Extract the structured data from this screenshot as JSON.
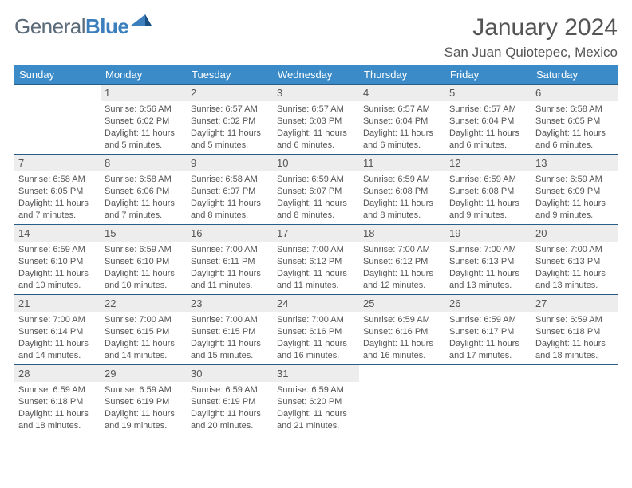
{
  "brand": {
    "part1": "General",
    "part2": "Blue"
  },
  "header": {
    "month": "January 2024",
    "location": "San Juan Quiotepec, Mexico"
  },
  "colors": {
    "header_bg": "#3b8bc9",
    "header_border": "#2b5c85",
    "day_bg": "#ededed",
    "text": "#555555",
    "logo_blue": "#3b7fbd",
    "logo_gray": "#5a6a78"
  },
  "daynames": [
    "Sunday",
    "Monday",
    "Tuesday",
    "Wednesday",
    "Thursday",
    "Friday",
    "Saturday"
  ],
  "weeks": [
    [
      {
        "num": "",
        "text": ""
      },
      {
        "num": "1",
        "text": "Sunrise: 6:56 AM\nSunset: 6:02 PM\nDaylight: 11 hours and 5 minutes."
      },
      {
        "num": "2",
        "text": "Sunrise: 6:57 AM\nSunset: 6:02 PM\nDaylight: 11 hours and 5 minutes."
      },
      {
        "num": "3",
        "text": "Sunrise: 6:57 AM\nSunset: 6:03 PM\nDaylight: 11 hours and 6 minutes."
      },
      {
        "num": "4",
        "text": "Sunrise: 6:57 AM\nSunset: 6:04 PM\nDaylight: 11 hours and 6 minutes."
      },
      {
        "num": "5",
        "text": "Sunrise: 6:57 AM\nSunset: 6:04 PM\nDaylight: 11 hours and 6 minutes."
      },
      {
        "num": "6",
        "text": "Sunrise: 6:58 AM\nSunset: 6:05 PM\nDaylight: 11 hours and 6 minutes."
      }
    ],
    [
      {
        "num": "7",
        "text": "Sunrise: 6:58 AM\nSunset: 6:05 PM\nDaylight: 11 hours and 7 minutes."
      },
      {
        "num": "8",
        "text": "Sunrise: 6:58 AM\nSunset: 6:06 PM\nDaylight: 11 hours and 7 minutes."
      },
      {
        "num": "9",
        "text": "Sunrise: 6:58 AM\nSunset: 6:07 PM\nDaylight: 11 hours and 8 minutes."
      },
      {
        "num": "10",
        "text": "Sunrise: 6:59 AM\nSunset: 6:07 PM\nDaylight: 11 hours and 8 minutes."
      },
      {
        "num": "11",
        "text": "Sunrise: 6:59 AM\nSunset: 6:08 PM\nDaylight: 11 hours and 8 minutes."
      },
      {
        "num": "12",
        "text": "Sunrise: 6:59 AM\nSunset: 6:08 PM\nDaylight: 11 hours and 9 minutes."
      },
      {
        "num": "13",
        "text": "Sunrise: 6:59 AM\nSunset: 6:09 PM\nDaylight: 11 hours and 9 minutes."
      }
    ],
    [
      {
        "num": "14",
        "text": "Sunrise: 6:59 AM\nSunset: 6:10 PM\nDaylight: 11 hours and 10 minutes."
      },
      {
        "num": "15",
        "text": "Sunrise: 6:59 AM\nSunset: 6:10 PM\nDaylight: 11 hours and 10 minutes."
      },
      {
        "num": "16",
        "text": "Sunrise: 7:00 AM\nSunset: 6:11 PM\nDaylight: 11 hours and 11 minutes."
      },
      {
        "num": "17",
        "text": "Sunrise: 7:00 AM\nSunset: 6:12 PM\nDaylight: 11 hours and 11 minutes."
      },
      {
        "num": "18",
        "text": "Sunrise: 7:00 AM\nSunset: 6:12 PM\nDaylight: 11 hours and 12 minutes."
      },
      {
        "num": "19",
        "text": "Sunrise: 7:00 AM\nSunset: 6:13 PM\nDaylight: 11 hours and 13 minutes."
      },
      {
        "num": "20",
        "text": "Sunrise: 7:00 AM\nSunset: 6:13 PM\nDaylight: 11 hours and 13 minutes."
      }
    ],
    [
      {
        "num": "21",
        "text": "Sunrise: 7:00 AM\nSunset: 6:14 PM\nDaylight: 11 hours and 14 minutes."
      },
      {
        "num": "22",
        "text": "Sunrise: 7:00 AM\nSunset: 6:15 PM\nDaylight: 11 hours and 14 minutes."
      },
      {
        "num": "23",
        "text": "Sunrise: 7:00 AM\nSunset: 6:15 PM\nDaylight: 11 hours and 15 minutes."
      },
      {
        "num": "24",
        "text": "Sunrise: 7:00 AM\nSunset: 6:16 PM\nDaylight: 11 hours and 16 minutes."
      },
      {
        "num": "25",
        "text": "Sunrise: 6:59 AM\nSunset: 6:16 PM\nDaylight: 11 hours and 16 minutes."
      },
      {
        "num": "26",
        "text": "Sunrise: 6:59 AM\nSunset: 6:17 PM\nDaylight: 11 hours and 17 minutes."
      },
      {
        "num": "27",
        "text": "Sunrise: 6:59 AM\nSunset: 6:18 PM\nDaylight: 11 hours and 18 minutes."
      }
    ],
    [
      {
        "num": "28",
        "text": "Sunrise: 6:59 AM\nSunset: 6:18 PM\nDaylight: 11 hours and 18 minutes."
      },
      {
        "num": "29",
        "text": "Sunrise: 6:59 AM\nSunset: 6:19 PM\nDaylight: 11 hours and 19 minutes."
      },
      {
        "num": "30",
        "text": "Sunrise: 6:59 AM\nSunset: 6:19 PM\nDaylight: 11 hours and 20 minutes."
      },
      {
        "num": "31",
        "text": "Sunrise: 6:59 AM\nSunset: 6:20 PM\nDaylight: 11 hours and 21 minutes."
      },
      {
        "num": "",
        "text": ""
      },
      {
        "num": "",
        "text": ""
      },
      {
        "num": "",
        "text": ""
      }
    ]
  ]
}
